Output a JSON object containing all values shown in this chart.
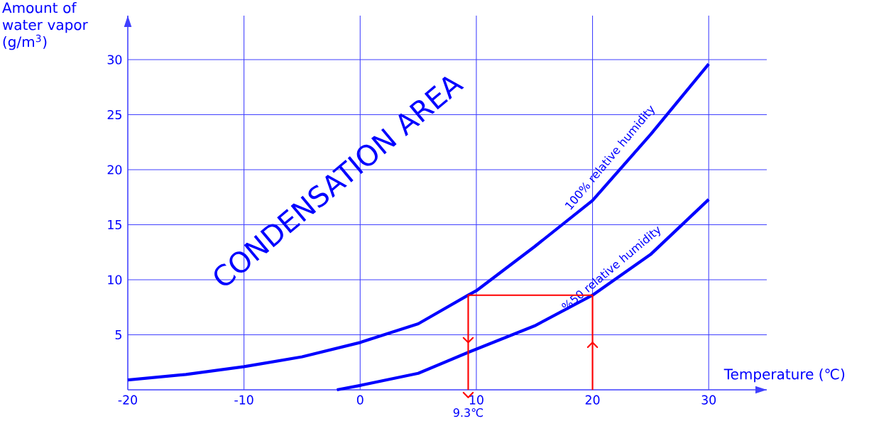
{
  "chart_data": {
    "type": "line",
    "xlabel": "Temperature (℃)",
    "ylabel": "Amount of water vapor (g/m$^{3}$)",
    "xlim": [
      -20,
      35
    ],
    "ylim": [
      0,
      34
    ],
    "xticks": [
      -20,
      -10,
      0,
      10,
      20,
      30
    ],
    "yticks": [
      {
        "value": 0,
        "label": null
      },
      5,
      10,
      15,
      20,
      25,
      30
    ],
    "grid": true,
    "series": [
      {
        "name": "100% relative humidity",
        "color": "#0000ff",
        "x": [
          -20,
          -15,
          -10,
          -5,
          0,
          5,
          9.3,
          10,
          15,
          20,
          25,
          30
        ],
        "values": [
          0.9,
          1.4,
          2.1,
          3.0,
          4.3,
          6.0,
          8.6,
          9.0,
          13.0,
          17.2,
          23.2,
          29.6
        ]
      },
      {
        "name": "%50 relative humidity",
        "color": "#0000ff",
        "x": [
          -2,
          0,
          5,
          9.3,
          15,
          20,
          25,
          30
        ],
        "values": [
          0.0,
          0.4,
          1.5,
          3.4,
          5.8,
          8.6,
          12.3,
          17.3
        ]
      },
      {
        "color": "#ff0000",
        "x": [
          20,
          20,
          9.3,
          9.3
        ],
        "values": [
          0,
          8.6,
          8.6,
          0
        ]
      }
    ],
    "annotations": [
      "CONDENSATION AREA",
      {
        "text": "9.3℃",
        "x": 9.3,
        "y": 0
      }
    ]
  }
}
